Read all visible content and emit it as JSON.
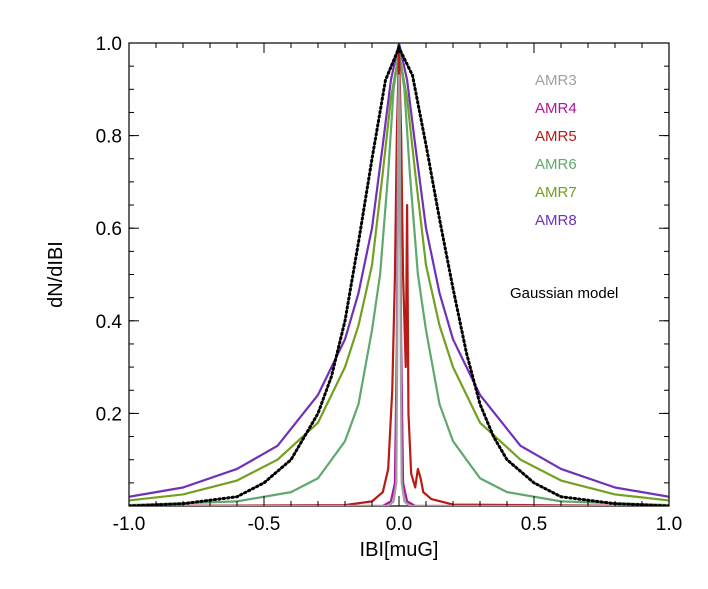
{
  "chart_data": {
    "type": "line",
    "title": "",
    "xlabel": "IBI[muG]",
    "ylabel": "dN/dIBI",
    "xlim": [
      -1.0,
      1.0
    ],
    "ylim": [
      0.0,
      1.0
    ],
    "x_ticks": [
      "-1.0",
      "-0.5",
      "0.0",
      "0.5",
      "1.0"
    ],
    "y_ticks": [
      "0.2",
      "0.4",
      "0.6",
      "0.8",
      "1.0"
    ],
    "series": [
      {
        "name": "AMR3",
        "color": "#a0a0a0",
        "peak": 0.93,
        "hwhm": 0.004,
        "points": [
          [
            -1.0,
            0.0
          ],
          [
            -0.04,
            0.0
          ],
          [
            -0.02,
            0.01
          ],
          [
            -0.01,
            0.05
          ],
          [
            -0.007,
            0.3
          ],
          [
            -0.003,
            0.85
          ],
          [
            0.0,
            0.93
          ],
          [
            0.003,
            0.85
          ],
          [
            0.007,
            0.3
          ],
          [
            0.01,
            0.05
          ],
          [
            0.02,
            0.01
          ],
          [
            0.04,
            0.0
          ],
          [
            1.0,
            0.0
          ]
        ]
      },
      {
        "name": "AMR4",
        "color": "#b0149c",
        "peak": 0.82,
        "hwhm": 0.006,
        "points": [
          [
            -1.0,
            0.0
          ],
          [
            -0.06,
            0.0
          ],
          [
            -0.03,
            0.01
          ],
          [
            -0.015,
            0.05
          ],
          [
            -0.008,
            0.35
          ],
          [
            -0.004,
            0.72
          ],
          [
            0.0,
            0.82
          ],
          [
            0.004,
            0.72
          ],
          [
            0.008,
            0.35
          ],
          [
            0.015,
            0.05
          ],
          [
            0.03,
            0.01
          ],
          [
            0.06,
            0.0
          ],
          [
            1.0,
            0.0
          ]
        ]
      },
      {
        "name": "AMR5",
        "color": "#b81a14",
        "peak": 0.98,
        "hwhm": 0.018,
        "points": [
          [
            -1.0,
            0.0
          ],
          [
            -0.2,
            0.002
          ],
          [
            -0.1,
            0.01
          ],
          [
            -0.06,
            0.03
          ],
          [
            -0.04,
            0.08
          ],
          [
            -0.025,
            0.25
          ],
          [
            -0.015,
            0.5
          ],
          [
            -0.008,
            0.8
          ],
          [
            0.0,
            0.98
          ],
          [
            0.008,
            0.8
          ],
          [
            0.015,
            0.5
          ],
          [
            0.025,
            0.3
          ],
          [
            0.03,
            0.65
          ],
          [
            0.035,
            0.2
          ],
          [
            0.045,
            0.07
          ],
          [
            0.06,
            0.04
          ],
          [
            0.07,
            0.08
          ],
          [
            0.08,
            0.06
          ],
          [
            0.09,
            0.03
          ],
          [
            0.12,
            0.015
          ],
          [
            0.2,
            0.003
          ],
          [
            1.0,
            0.0
          ]
        ]
      },
      {
        "name": "AMR6",
        "color": "#5fa86e",
        "peak": 0.98,
        "hwhm": 0.055,
        "points": [
          [
            -1.0,
            0.002
          ],
          [
            -0.6,
            0.01
          ],
          [
            -0.4,
            0.03
          ],
          [
            -0.3,
            0.06
          ],
          [
            -0.2,
            0.14
          ],
          [
            -0.15,
            0.22
          ],
          [
            -0.1,
            0.38
          ],
          [
            -0.07,
            0.5
          ],
          [
            -0.04,
            0.72
          ],
          [
            -0.02,
            0.9
          ],
          [
            0.0,
            0.98
          ],
          [
            0.02,
            0.9
          ],
          [
            0.04,
            0.72
          ],
          [
            0.07,
            0.5
          ],
          [
            0.1,
            0.38
          ],
          [
            0.15,
            0.22
          ],
          [
            0.2,
            0.14
          ],
          [
            0.3,
            0.06
          ],
          [
            0.4,
            0.03
          ],
          [
            0.6,
            0.01
          ],
          [
            1.0,
            0.002
          ]
        ]
      },
      {
        "name": "AMR7",
        "color": "#72a020",
        "peak": 0.98,
        "hwhm": 0.1,
        "points": [
          [
            -1.0,
            0.012
          ],
          [
            -0.8,
            0.025
          ],
          [
            -0.6,
            0.055
          ],
          [
            -0.45,
            0.1
          ],
          [
            -0.3,
            0.18
          ],
          [
            -0.2,
            0.3
          ],
          [
            -0.15,
            0.39
          ],
          [
            -0.1,
            0.52
          ],
          [
            -0.06,
            0.72
          ],
          [
            -0.03,
            0.88
          ],
          [
            0.0,
            0.98
          ],
          [
            0.03,
            0.88
          ],
          [
            0.06,
            0.72
          ],
          [
            0.1,
            0.52
          ],
          [
            0.15,
            0.39
          ],
          [
            0.2,
            0.3
          ],
          [
            0.3,
            0.18
          ],
          [
            0.45,
            0.1
          ],
          [
            0.6,
            0.055
          ],
          [
            0.8,
            0.025
          ],
          [
            1.0,
            0.012
          ]
        ]
      },
      {
        "name": "AMR8",
        "color": "#7030b8",
        "peak": 1.0,
        "hwhm": 0.14,
        "points": [
          [
            -1.0,
            0.02
          ],
          [
            -0.8,
            0.04
          ],
          [
            -0.6,
            0.08
          ],
          [
            -0.45,
            0.13
          ],
          [
            -0.3,
            0.24
          ],
          [
            -0.2,
            0.36
          ],
          [
            -0.15,
            0.46
          ],
          [
            -0.1,
            0.6
          ],
          [
            -0.06,
            0.78
          ],
          [
            -0.03,
            0.92
          ],
          [
            0.0,
            1.0
          ],
          [
            0.03,
            0.92
          ],
          [
            0.06,
            0.78
          ],
          [
            0.1,
            0.6
          ],
          [
            0.15,
            0.46
          ],
          [
            0.2,
            0.36
          ],
          [
            0.3,
            0.24
          ],
          [
            0.45,
            0.13
          ],
          [
            0.6,
            0.08
          ],
          [
            0.8,
            0.04
          ],
          [
            1.0,
            0.02
          ]
        ]
      }
    ],
    "model": {
      "name": "Gaussian model",
      "color": "#000000",
      "style": "dotted",
      "points": [
        [
          -1.0,
          0.0
        ],
        [
          -0.8,
          0.005
        ],
        [
          -0.6,
          0.02
        ],
        [
          -0.5,
          0.05
        ],
        [
          -0.4,
          0.1
        ],
        [
          -0.3,
          0.2
        ],
        [
          -0.25,
          0.28
        ],
        [
          -0.2,
          0.4
        ],
        [
          -0.15,
          0.57
        ],
        [
          -0.1,
          0.75
        ],
        [
          -0.05,
          0.92
        ],
        [
          0.0,
          0.99
        ],
        [
          0.05,
          0.93
        ],
        [
          0.1,
          0.78
        ],
        [
          0.15,
          0.62
        ],
        [
          0.2,
          0.47
        ],
        [
          0.25,
          0.33
        ],
        [
          0.3,
          0.22
        ],
        [
          0.35,
          0.15
        ],
        [
          0.4,
          0.1
        ],
        [
          0.5,
          0.05
        ],
        [
          0.6,
          0.02
        ],
        [
          0.8,
          0.005
        ],
        [
          1.0,
          0.0
        ]
      ]
    },
    "legend_position": "top-right"
  }
}
